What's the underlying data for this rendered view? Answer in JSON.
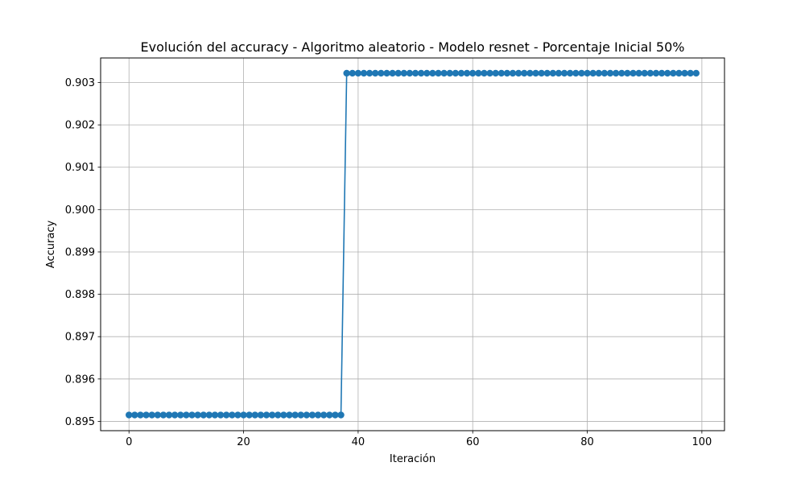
{
  "chart_data": {
    "type": "line",
    "title": "Evolución del accuracy - Algoritmo aleatorio - Modelo resnet - Porcentaje Inicial 50%",
    "xlabel": "Iteración",
    "ylabel": "Accuracy",
    "xlim": [
      -4.95,
      103.95
    ],
    "ylim": [
      0.89478,
      0.90358
    ],
    "xticks": [
      0,
      20,
      40,
      60,
      80,
      100
    ],
    "xtick_labels": [
      "0",
      "20",
      "40",
      "60",
      "80",
      "100"
    ],
    "yticks": [
      0.895,
      0.896,
      0.897,
      0.898,
      0.899,
      0.9,
      0.901,
      0.902,
      0.903
    ],
    "ytick_labels": [
      "0.895",
      "0.896",
      "0.897",
      "0.898",
      "0.899",
      "0.900",
      "0.901",
      "0.902",
      "0.903"
    ],
    "grid": true,
    "marker": "circle",
    "series": [
      {
        "name": "accuracy",
        "color": "#1f77b4",
        "segments": [
          {
            "x_start": 0,
            "x_end": 37,
            "value": 0.89515
          },
          {
            "x_start": 38,
            "x_end": 99,
            "value": 0.90322
          }
        ]
      }
    ]
  }
}
